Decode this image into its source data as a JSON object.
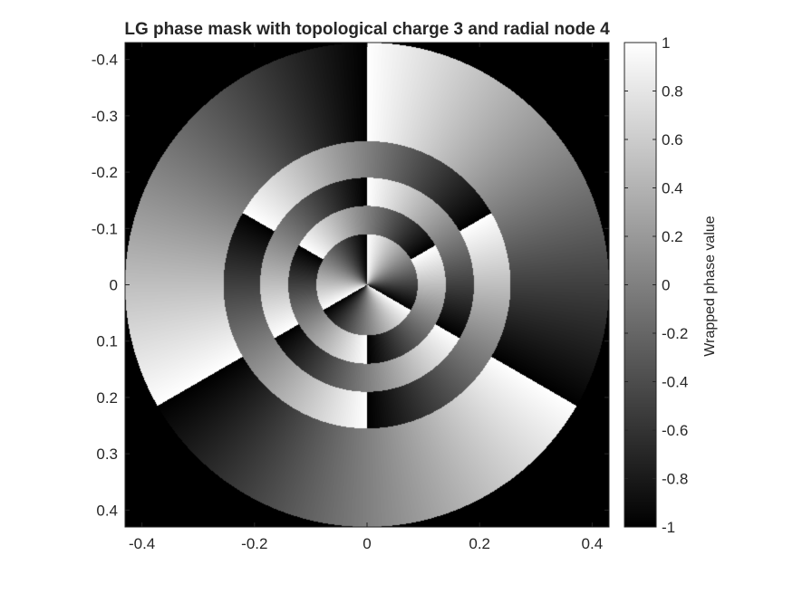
{
  "chart_data": {
    "type": "heatmap",
    "title": "LG phase mask with topological charge 3 and radial node 4",
    "xlabel": "",
    "ylabel": "",
    "topological_charge": 3,
    "radial_node": 4,
    "xlim": [
      -0.43,
      0.43
    ],
    "ylim": [
      -0.43,
      0.43
    ],
    "y_axis_reversed": true,
    "x_ticks": [
      -0.4,
      -0.2,
      0,
      0.2,
      0.4
    ],
    "x_tick_labels": [
      "-0.4",
      "-0.2",
      "0",
      "0.2",
      "0.4"
    ],
    "y_ticks": [
      -0.4,
      -0.3,
      -0.2,
      -0.1,
      0,
      0.1,
      0.2,
      0.3,
      0.4
    ],
    "y_tick_labels": [
      "-0.4",
      "-0.3",
      "-0.2",
      "-0.1",
      "0",
      "0.1",
      "0.2",
      "0.3",
      "0.4"
    ],
    "aperture_radius": 0.43,
    "ring_radii": [
      0.09,
      0.14,
      0.19,
      0.255
    ],
    "colormap": "gray",
    "colorbar": {
      "label": "Wrapped phase value",
      "clim": [
        -1,
        1
      ],
      "ticks": [
        1,
        0.8,
        0.6,
        0.4,
        0.2,
        0,
        -0.2,
        -0.4,
        -0.6,
        -0.8,
        -1
      ],
      "tick_labels": [
        "1",
        "0.8",
        "0.6",
        "0.4",
        "0.2",
        "0",
        "-0.2",
        "-0.4",
        "-0.6",
        "-0.8",
        "-1"
      ]
    },
    "grid": false
  }
}
